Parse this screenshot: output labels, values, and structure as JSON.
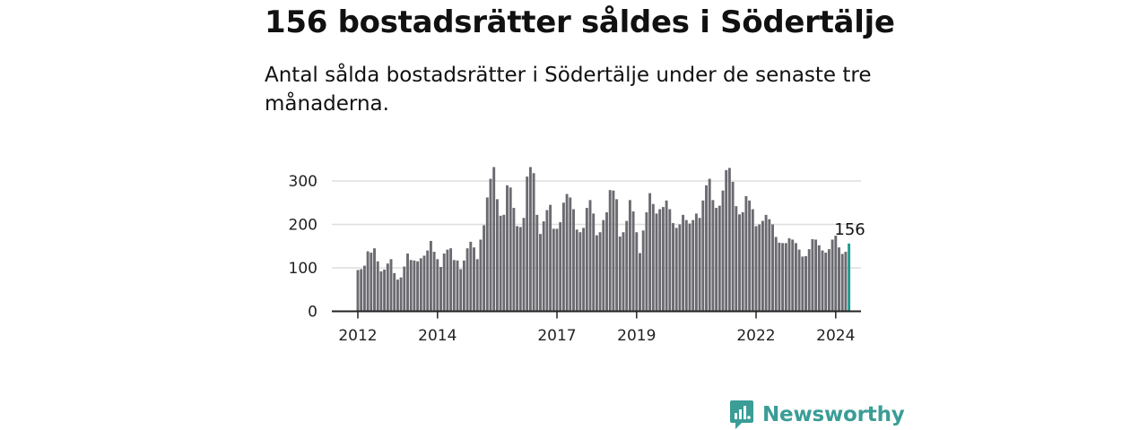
{
  "title": "156 bostadsrätter såldes i Södertälje",
  "subtitle": "Antal sålda bostadsrätter i Södertälje under de senaste tre månaderna.",
  "logo_text": "Newsworthy",
  "colors": {
    "bar": "#6b6a70",
    "highlight": "#1a9e8f",
    "grid": "#dddddd",
    "axis": "#222222",
    "brand": "#3a9d96"
  },
  "chart_data": {
    "type": "bar",
    "title": "",
    "xlabel": "",
    "ylabel": "",
    "ylim": [
      0,
      320
    ],
    "yticks": [
      0,
      100,
      200,
      300
    ],
    "grid": true,
    "legend": "none",
    "x_start": "2012-01",
    "x_tick_labels": [
      {
        "label": "2012",
        "index": 0
      },
      {
        "label": "2014",
        "index": 24
      },
      {
        "label": "2017",
        "index": 60
      },
      {
        "label": "2019",
        "index": 84
      },
      {
        "label": "2022",
        "index": 120
      },
      {
        "label": "2024",
        "index": 144
      }
    ],
    "values": [
      95,
      97,
      105,
      138,
      135,
      145,
      115,
      92,
      96,
      110,
      120,
      88,
      73,
      78,
      103,
      133,
      118,
      117,
      115,
      122,
      128,
      140,
      162,
      137,
      120,
      102,
      133,
      142,
      145,
      118,
      117,
      97,
      117,
      145,
      160,
      147,
      120,
      165,
      198,
      262,
      305,
      332,
      258,
      220,
      222,
      290,
      285,
      238,
      196,
      194,
      215,
      310,
      332,
      318,
      222,
      178,
      207,
      233,
      245,
      190,
      190,
      205,
      250,
      270,
      262,
      235,
      188,
      182,
      192,
      238,
      256,
      225,
      175,
      182,
      210,
      228,
      279,
      278,
      258,
      172,
      182,
      208,
      256,
      230,
      182,
      134,
      186,
      228,
      272,
      247,
      225,
      235,
      240,
      255,
      235,
      203,
      192,
      200,
      222,
      210,
      202,
      210,
      225,
      215,
      255,
      290,
      305,
      256,
      238,
      243,
      278,
      325,
      330,
      298,
      242,
      223,
      228,
      265,
      255,
      235,
      196,
      200,
      208,
      222,
      212,
      200,
      171,
      158,
      157,
      157,
      168,
      165,
      157,
      142,
      126,
      127,
      143,
      166,
      165,
      152,
      140,
      135,
      143,
      165,
      174,
      147,
      132,
      137,
      156
    ],
    "highlight_index": 148,
    "annotation": {
      "label": "156",
      "index": 148
    }
  }
}
